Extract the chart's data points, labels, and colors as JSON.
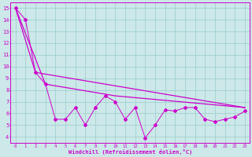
{
  "xlabel": "Windchill (Refroidissement éolien,°C)",
  "bg_color": "#cce8e8",
  "grid_color": "#99cccc",
  "line_color": "#cc00cc",
  "xlim": [
    -0.5,
    23.5
  ],
  "ylim": [
    3.5,
    15.5
  ],
  "xticks": [
    0,
    1,
    2,
    3,
    4,
    5,
    6,
    7,
    8,
    9,
    10,
    11,
    12,
    13,
    14,
    15,
    16,
    17,
    18,
    19,
    20,
    21,
    22,
    23
  ],
  "yticks": [
    4,
    5,
    6,
    7,
    8,
    9,
    10,
    11,
    12,
    13,
    14,
    15
  ],
  "series1_x": [
    0,
    1,
    2,
    3,
    4,
    5,
    6,
    7,
    8,
    9,
    10,
    11,
    12,
    13,
    14,
    15,
    16,
    17,
    18,
    19,
    20,
    21,
    22,
    23
  ],
  "series1_y": [
    15,
    14,
    9.5,
    8.5,
    5.5,
    5.5,
    6.5,
    5.0,
    6.5,
    7.5,
    7.0,
    5.5,
    6.5,
    3.9,
    5.0,
    6.3,
    6.2,
    6.5,
    6.5,
    5.5,
    5.3,
    5.5,
    5.7,
    6.2
  ],
  "series2_x": [
    0,
    2,
    23
  ],
  "series2_y": [
    15,
    9.5,
    6.5
  ],
  "series3_x": [
    0,
    3,
    10,
    23
  ],
  "series3_y": [
    15,
    8.5,
    7.5,
    6.5
  ]
}
